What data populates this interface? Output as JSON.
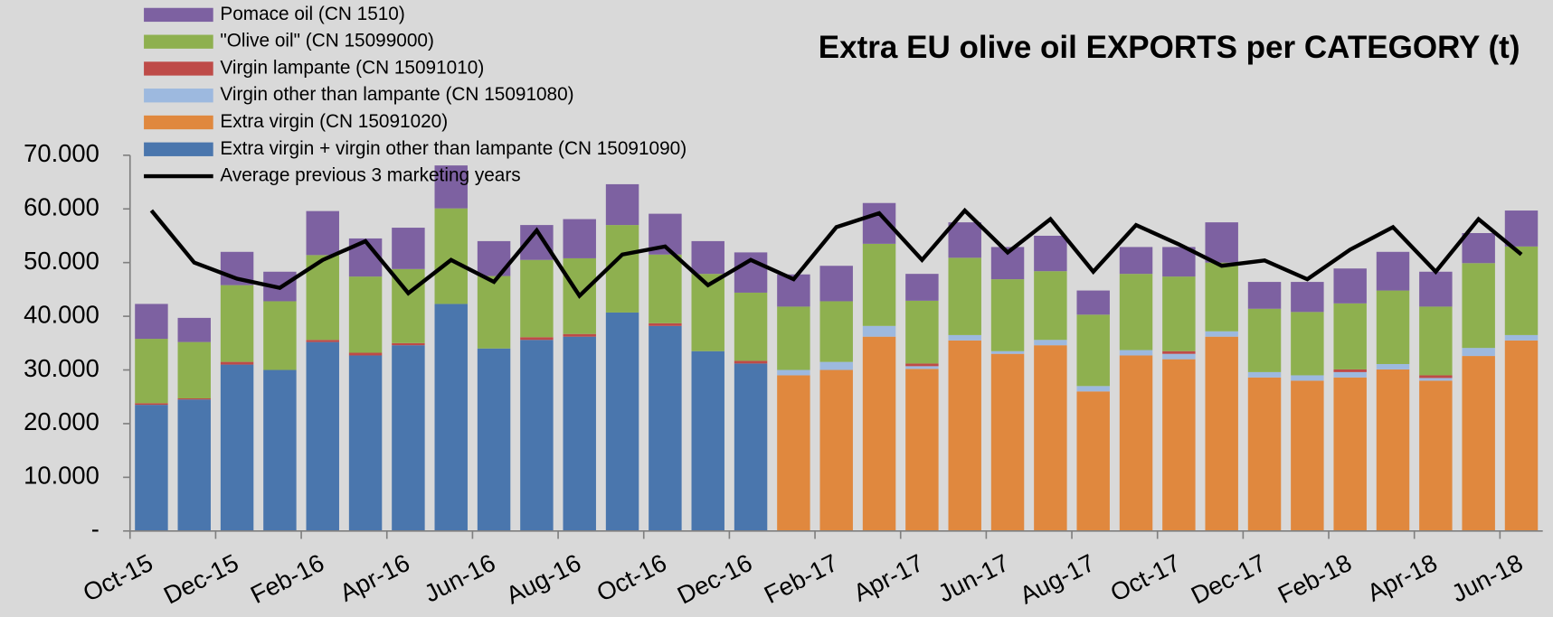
{
  "chart_data": {
    "type": "bar",
    "stacked": true,
    "title": "Extra EU olive oil EXPORTS per CATEGORY (t)",
    "categories": [
      "Oct-15",
      null,
      "Dec-15",
      null,
      "Feb-16",
      null,
      "Apr-16",
      null,
      "Jun-16",
      null,
      "Aug-16",
      null,
      "Oct-16",
      null,
      "Dec-16",
      null,
      "Feb-17",
      null,
      "Apr-17",
      null,
      "Jun-17",
      null,
      "Aug-17",
      null,
      "Oct-17",
      null,
      "Dec-17",
      null,
      "Feb-18",
      null,
      "Apr-18",
      null,
      "Jun-18"
    ],
    "series": [
      {
        "name": "Extra virgin + virgin other than lampante (CN 15091090)",
        "color": "#4a76ad",
        "values": [
          23500,
          24500,
          31000,
          30000,
          35200,
          32700,
          34600,
          42300,
          34000,
          35600,
          36200,
          40700,
          38200,
          33500,
          31200,
          null,
          null,
          null,
          null,
          null,
          null,
          null,
          null,
          null,
          null,
          null,
          null,
          null,
          null,
          null,
          null,
          null,
          null
        ]
      },
      {
        "name": "Extra virgin (CN 15091020)",
        "color": "#e0883e",
        "values": [
          null,
          null,
          null,
          null,
          null,
          null,
          null,
          null,
          null,
          null,
          null,
          null,
          null,
          null,
          null,
          29000,
          30000,
          36200,
          30200,
          35500,
          33000,
          34600,
          26000,
          32700,
          32000,
          36200,
          28600,
          28000,
          28600,
          30100,
          28000,
          32600,
          35500
        ]
      },
      {
        "name": "Virgin other than lampante (CN 15091080)",
        "color": "#9db9df",
        "values": [
          null,
          null,
          null,
          null,
          null,
          null,
          null,
          null,
          null,
          null,
          null,
          null,
          null,
          null,
          null,
          1000,
          1500,
          2000,
          500,
          1000,
          500,
          1000,
          1000,
          1000,
          1000,
          1000,
          1000,
          1000,
          1000,
          1000,
          500,
          1500,
          1000
        ]
      },
      {
        "name": "Virgin lampante (CN 15091010)",
        "color": "#be4b48",
        "values": [
          300,
          200,
          500,
          0,
          400,
          500,
          400,
          0,
          0,
          500,
          500,
          0,
          500,
          0,
          500,
          0,
          0,
          0,
          500,
          0,
          0,
          0,
          0,
          0,
          500,
          0,
          0,
          0,
          500,
          0,
          500,
          0,
          0
        ]
      },
      {
        "name": "\"Olive oil\" (CN 15099000)",
        "color": "#8eb04f",
        "values": [
          12000,
          10500,
          14300,
          12800,
          15800,
          14200,
          13800,
          17800,
          13500,
          14400,
          14100,
          16300,
          12800,
          14400,
          12700,
          11800,
          11300,
          15300,
          11700,
          14400,
          13400,
          12800,
          13300,
          14200,
          13900,
          12800,
          11800,
          11800,
          12300,
          13700,
          12800,
          15800,
          16500
        ]
      },
      {
        "name": "Pomace oil (CN 1510)",
        "color": "#7d61a1",
        "values": [
          6500,
          4500,
          6200,
          5500,
          8200,
          7100,
          7700,
          8000,
          6500,
          6500,
          7300,
          7600,
          7600,
          6100,
          7500,
          6000,
          6600,
          7600,
          5000,
          6600,
          6000,
          6600,
          4500,
          5000,
          5500,
          7500,
          5000,
          5600,
          6500,
          7200,
          6500,
          5600,
          6700
        ]
      }
    ],
    "line": {
      "name": "Average previous 3 marketing years",
      "color": "#000000",
      "values": [
        59700,
        50000,
        47000,
        45300,
        50500,
        54000,
        44300,
        50500,
        46400,
        56000,
        43800,
        51500,
        53000,
        45800,
        50500,
        46900,
        56600,
        59200,
        50500,
        59700,
        51900,
        58100,
        48300,
        57000,
        53400,
        49400,
        50400,
        46900,
        52400,
        56600,
        48300,
        58100,
        51500
      ]
    },
    "ylim": [
      0,
      70000
    ],
    "yticks": [
      {
        "value": 0,
        "label": "-"
      },
      {
        "value": 10000,
        "label": "10.000"
      },
      {
        "value": 20000,
        "label": "20.000"
      },
      {
        "value": 30000,
        "label": "30.000"
      },
      {
        "value": 40000,
        "label": "40.000"
      },
      {
        "value": 50000,
        "label": "50.000"
      },
      {
        "value": 60000,
        "label": "60.000"
      },
      {
        "value": 70000,
        "label": "70.000"
      }
    ],
    "legend": "top-left"
  }
}
